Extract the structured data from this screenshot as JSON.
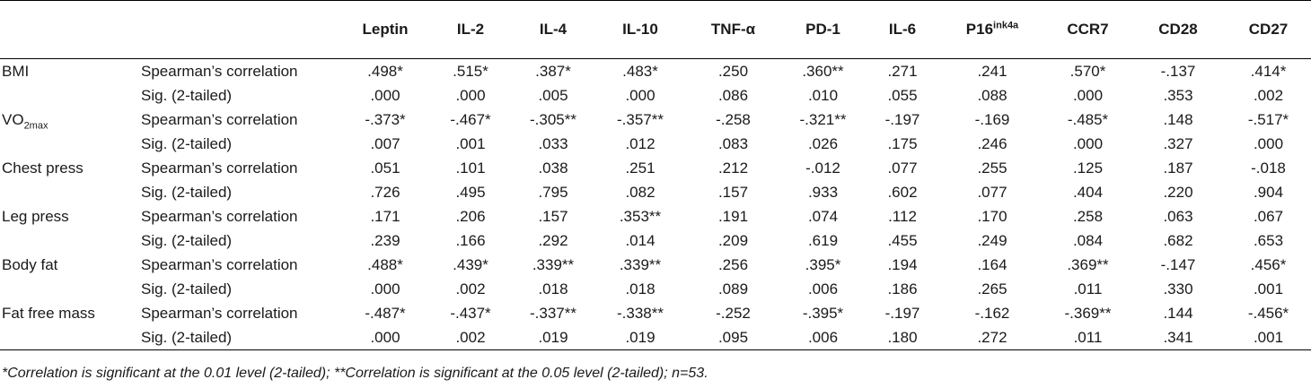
{
  "headers": {
    "blank1": "",
    "blank2": "",
    "leptin": "Leptin",
    "il2": "IL-2",
    "il4": "IL-4",
    "il10": "IL-10",
    "tnf": "TNF-α",
    "pd1": "PD-1",
    "il6": "IL-6",
    "p16_base": "P16",
    "p16_sup": "ink4a",
    "ccr7": "CCR7",
    "cd28": "CD28",
    "cd27": "CD27"
  },
  "rows": [
    {
      "variable": "BMI",
      "stat": "Spearman’s correlation",
      "values": [
        ".498*",
        ".515*",
        ".387*",
        ".483*",
        ".250",
        ".360**",
        ".271",
        ".241",
        ".570*",
        "-.137",
        ".414*"
      ]
    },
    {
      "variable": "",
      "stat": "Sig. (2-tailed)",
      "values": [
        ".000",
        ".000",
        ".005",
        ".000",
        ".086",
        ".010",
        ".055",
        ".088",
        ".000",
        ".353",
        ".002"
      ]
    },
    {
      "variable": "VO",
      "variable_sub": "2max",
      "stat": "Spearman’s correlation",
      "values": [
        "-.373*",
        "-.467*",
        "-.305**",
        "-.357**",
        "-.258",
        "-.321**",
        "-.197",
        "-.169",
        "-.485*",
        ".148",
        "-.517*"
      ]
    },
    {
      "variable": "",
      "stat": "Sig. (2-tailed)",
      "values": [
        ".007",
        ".001",
        ".033",
        ".012",
        ".083",
        ".026",
        ".175",
        ".246",
        ".000",
        ".327",
        ".000"
      ]
    },
    {
      "variable": "Chest press",
      "stat": "Spearman’s correlation",
      "values": [
        ".051",
        ".101",
        ".038",
        ".251",
        ".212",
        "-.012",
        ".077",
        ".255",
        ".125",
        ".187",
        "-.018"
      ]
    },
    {
      "variable": "",
      "stat": "Sig. (2-tailed)",
      "values": [
        ".726",
        ".495",
        ".795",
        ".082",
        ".157",
        ".933",
        ".602",
        ".077",
        ".404",
        ".220",
        ".904"
      ]
    },
    {
      "variable": "Leg press",
      "stat": "Spearman’s correlation",
      "values": [
        ".171",
        ".206",
        ".157",
        ".353**",
        ".191",
        ".074",
        ".112",
        ".170",
        ".258",
        ".063",
        ".067"
      ]
    },
    {
      "variable": "",
      "stat": "Sig. (2-tailed)",
      "values": [
        ".239",
        ".166",
        ".292",
        ".014",
        ".209",
        ".619",
        ".455",
        ".249",
        ".084",
        ".682",
        ".653"
      ]
    },
    {
      "variable": "Body fat",
      "stat": "Spearman’s correlation",
      "values": [
        ".488*",
        ".439*",
        ".339**",
        ".339**",
        ".256",
        ".395*",
        ".194",
        ".164",
        ".369**",
        "-.147",
        ".456*"
      ]
    },
    {
      "variable": "",
      "stat": "Sig. (2-tailed)",
      "values": [
        ".000",
        ".002",
        ".018",
        ".018",
        ".089",
        ".006",
        ".186",
        ".265",
        ".011",
        ".330",
        ".001"
      ]
    },
    {
      "variable": "Fat free mass",
      "stat": "Spearman’s correlation",
      "values": [
        "-.487*",
        "-.437*",
        "-.337**",
        "-.338**",
        "-.252",
        "-.395*",
        "-.197",
        "-.162",
        "-.369**",
        ".144",
        "-.456*"
      ]
    },
    {
      "variable": "",
      "stat": "Sig. (2-tailed)",
      "values": [
        ".000",
        ".002",
        ".019",
        ".019",
        ".095",
        ".006",
        ".180",
        ".272",
        ".011",
        ".341",
        ".001"
      ]
    }
  ],
  "footnote": "*Correlation is significant at the 0.01 level (2-tailed); **Correlation is significant at the 0.05 level (2-tailed); n=53."
}
